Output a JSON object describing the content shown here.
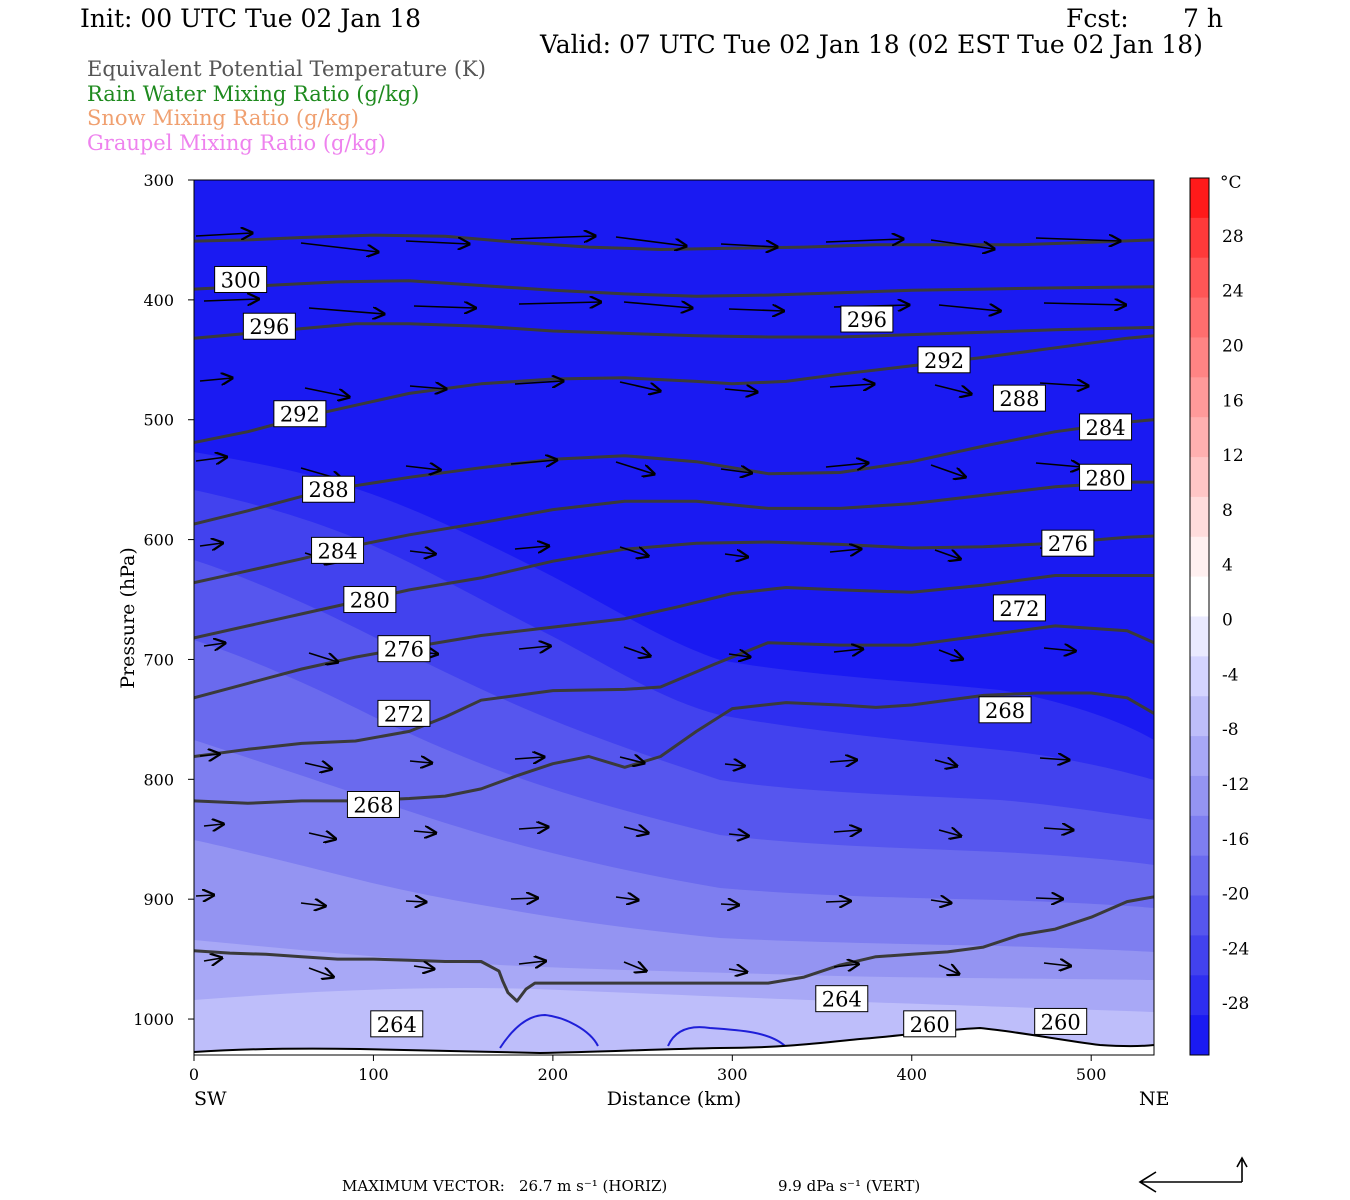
{
  "header": {
    "init": "Init: 00 UTC Tue 02 Jan 18",
    "fcst_label": "Fcst:",
    "fcst_value": "7 h",
    "valid": "Valid: 07 UTC Tue 02 Jan 18 (02 EST Tue 02 Jan 18)"
  },
  "legend": [
    {
      "text": "Equivalent Potential Temperature (K)",
      "color": "#555555"
    },
    {
      "text": "Rain Water Mixing Ratio (g/kg)",
      "color": "#1e8a1e"
    },
    {
      "text": "Snow Mixing Ratio (g/kg)",
      "color": "#f0a070"
    },
    {
      "text": "Graupel Mixing Ratio (g/kg)",
      "color": "#ee82ee"
    }
  ],
  "footer": {
    "max_vector_label": "MAXIMUM VECTOR:",
    "horiz": "26.7 m s⁻¹ (HORIZ)",
    "vert": "9.9 dPa s⁻¹ (VERT)"
  },
  "chart_data": {
    "type": "cross-section",
    "xlabel": "Distance (km)",
    "ylabel": "Pressure (hPa)",
    "x_ticks": [
      0,
      100,
      200,
      300,
      400,
      500
    ],
    "xlim": [
      0,
      535
    ],
    "x_end_labels": {
      "left": "SW",
      "right": "NE"
    },
    "y_ticks": [
      300,
      400,
      500,
      600,
      700,
      800,
      900,
      1000
    ],
    "ylim": [
      1030,
      300
    ],
    "colorbar": {
      "unit": "°C",
      "labels": [
        28,
        24,
        20,
        16,
        12,
        8,
        4,
        0,
        -4,
        -8,
        -12,
        -16,
        -20,
        -24,
        -28
      ],
      "colors": [
        "#ff1a1a",
        "#ff3a3a",
        "#ff5656",
        "#ff6e6e",
        "#ff8484",
        "#ff9a9a",
        "#ffb0b0",
        "#ffc6c6",
        "#ffdcdc",
        "#fff0f0",
        "#ffffff",
        "#eaeaff",
        "#d4d4ff",
        "#bebefa",
        "#a8a8f6",
        "#9494f2",
        "#7e7ef0",
        "#6a6aee",
        "#5656ee",
        "#4242ee",
        "#2e2ef0",
        "#1a1af2"
      ]
    },
    "theta_e_contours": [
      {
        "level": 300,
        "points": [
          [
            0,
            351
          ],
          [
            30,
            350
          ],
          [
            60,
            348
          ],
          [
            100,
            346
          ],
          [
            140,
            347
          ],
          [
            180,
            352
          ],
          [
            220,
            356
          ],
          [
            260,
            358
          ],
          [
            300,
            357
          ],
          [
            340,
            356
          ],
          [
            380,
            354
          ],
          [
            420,
            354
          ],
          [
            460,
            354
          ],
          [
            500,
            352
          ],
          [
            535,
            350
          ]
        ]
      },
      {
        "level": 296,
        "points": [
          [
            0,
            391
          ],
          [
            40,
            388
          ],
          [
            80,
            385
          ],
          [
            120,
            384
          ],
          [
            160,
            388
          ],
          [
            200,
            392
          ],
          [
            240,
            395
          ],
          [
            280,
            397
          ],
          [
            320,
            396
          ],
          [
            360,
            394
          ],
          [
            400,
            392
          ],
          [
            440,
            391
          ],
          [
            480,
            390
          ],
          [
            535,
            389
          ]
        ]
      },
      {
        "level": 292,
        "points": [
          [
            0,
            432
          ],
          [
            30,
            428
          ],
          [
            60,
            424
          ],
          [
            90,
            420
          ],
          [
            120,
            420
          ],
          [
            160,
            422
          ],
          [
            200,
            426
          ],
          [
            240,
            428
          ],
          [
            280,
            430
          ],
          [
            320,
            431
          ],
          [
            360,
            431
          ],
          [
            400,
            429
          ],
          [
            440,
            427
          ],
          [
            480,
            425
          ],
          [
            535,
            423
          ]
        ]
      },
      {
        "level": 288,
        "points": [
          [
            0,
            519
          ],
          [
            30,
            510
          ],
          [
            60,
            498
          ],
          [
            90,
            488
          ],
          [
            120,
            478
          ],
          [
            160,
            470
          ],
          [
            200,
            466
          ],
          [
            240,
            465
          ],
          [
            280,
            468
          ],
          [
            300,
            470
          ],
          [
            330,
            468
          ],
          [
            360,
            462
          ],
          [
            400,
            455
          ],
          [
            440,
            448
          ],
          [
            480,
            440
          ],
          [
            520,
            432
          ],
          [
            535,
            430
          ]
        ]
      },
      {
        "level": 284,
        "points": [
          [
            0,
            587
          ],
          [
            30,
            576
          ],
          [
            60,
            564
          ],
          [
            90,
            555
          ],
          [
            120,
            548
          ],
          [
            160,
            540
          ],
          [
            200,
            533
          ],
          [
            240,
            530
          ],
          [
            280,
            535
          ],
          [
            320,
            545
          ],
          [
            360,
            544
          ],
          [
            400,
            535
          ],
          [
            440,
            522
          ],
          [
            480,
            510
          ],
          [
            520,
            502
          ],
          [
            535,
            500
          ]
        ]
      },
      {
        "level": 280,
        "points": [
          [
            0,
            636
          ],
          [
            30,
            626
          ],
          [
            60,
            616
          ],
          [
            90,
            605
          ],
          [
            120,
            596
          ],
          [
            160,
            586
          ],
          [
            200,
            575
          ],
          [
            240,
            568
          ],
          [
            280,
            568
          ],
          [
            320,
            574
          ],
          [
            360,
            574
          ],
          [
            400,
            570
          ],
          [
            440,
            563
          ],
          [
            480,
            556
          ],
          [
            520,
            552
          ],
          [
            535,
            552
          ]
        ]
      },
      {
        "level": 276,
        "points": [
          [
            0,
            682
          ],
          [
            30,
            672
          ],
          [
            60,
            662
          ],
          [
            90,
            652
          ],
          [
            120,
            642
          ],
          [
            160,
            632
          ],
          [
            200,
            618
          ],
          [
            240,
            608
          ],
          [
            280,
            603
          ],
          [
            320,
            602
          ],
          [
            360,
            604
          ],
          [
            400,
            607
          ],
          [
            440,
            606
          ],
          [
            480,
            603
          ],
          [
            520,
            598
          ],
          [
            535,
            597
          ]
        ]
      },
      {
        "level": 272,
        "points": [
          [
            0,
            732
          ],
          [
            30,
            720
          ],
          [
            60,
            708
          ],
          [
            90,
            698
          ],
          [
            120,
            690
          ],
          [
            160,
            680
          ],
          [
            200,
            673
          ],
          [
            240,
            666
          ],
          [
            270,
            656
          ],
          [
            300,
            645
          ],
          [
            330,
            640
          ],
          [
            360,
            642
          ],
          [
            400,
            644
          ],
          [
            440,
            638
          ],
          [
            480,
            630
          ],
          [
            510,
            630
          ],
          [
            535,
            630
          ]
        ]
      },
      {
        "level": 268,
        "points": [
          [
            0,
            781
          ],
          [
            30,
            775
          ],
          [
            60,
            770
          ],
          [
            90,
            768
          ],
          [
            120,
            760
          ],
          [
            140,
            748
          ],
          [
            160,
            734
          ],
          [
            200,
            726
          ],
          [
            240,
            725
          ],
          [
            260,
            723
          ],
          [
            290,
            704
          ],
          [
            320,
            686
          ],
          [
            360,
            688
          ],
          [
            400,
            688
          ],
          [
            440,
            680
          ],
          [
            480,
            672
          ],
          [
            520,
            676
          ],
          [
            535,
            686
          ]
        ]
      },
      {
        "level": 264,
        "points": [
          [
            0,
            818
          ],
          [
            30,
            820
          ],
          [
            60,
            818
          ],
          [
            90,
            818
          ],
          [
            120,
            816
          ],
          [
            140,
            814
          ],
          [
            160,
            808
          ],
          [
            180,
            797
          ],
          [
            200,
            787
          ],
          [
            220,
            781
          ],
          [
            240,
            790
          ],
          [
            260,
            781
          ],
          [
            280,
            760
          ],
          [
            300,
            741
          ],
          [
            330,
            736
          ],
          [
            360,
            738
          ],
          [
            380,
            740
          ],
          [
            400,
            738
          ],
          [
            440,
            730
          ],
          [
            470,
            728
          ],
          [
            500,
            728
          ],
          [
            520,
            732
          ],
          [
            535,
            745
          ]
        ]
      },
      {
        "level": 260,
        "points": [
          [
            0,
            943
          ],
          [
            20,
            945
          ],
          [
            40,
            946
          ],
          [
            60,
            948
          ],
          [
            80,
            950
          ],
          [
            100,
            950
          ],
          [
            120,
            951
          ],
          [
            140,
            952
          ],
          [
            160,
            952
          ],
          [
            170,
            960
          ],
          [
            172,
            968
          ],
          [
            175,
            978
          ],
          [
            180,
            985
          ],
          [
            185,
            975
          ],
          [
            190,
            970
          ],
          [
            260,
            970
          ],
          [
            280,
            970
          ],
          [
            300,
            970
          ],
          [
            320,
            970
          ],
          [
            340,
            965
          ],
          [
            360,
            955
          ],
          [
            380,
            948
          ],
          [
            400,
            946
          ],
          [
            420,
            944
          ],
          [
            440,
            940
          ],
          [
            460,
            930
          ],
          [
            480,
            925
          ],
          [
            500,
            915
          ],
          [
            520,
            902
          ],
          [
            535,
            898
          ]
        ]
      }
    ],
    "theta_e_labels": [
      {
        "level": 300,
        "x": 26,
        "p": 383
      },
      {
        "level": 296,
        "x": 42,
        "p": 422
      },
      {
        "level": 292,
        "x": 59,
        "p": 495
      },
      {
        "level": 288,
        "x": 75,
        "p": 558
      },
      {
        "level": 284,
        "x": 80,
        "p": 609
      },
      {
        "level": 280,
        "x": 98,
        "p": 650
      },
      {
        "level": 276,
        "x": 117,
        "p": 691
      },
      {
        "level": 272,
        "x": 117,
        "p": 745
      },
      {
        "level": 268,
        "x": 100,
        "p": 821
      },
      {
        "level": 264,
        "x": 113,
        "p": 1004
      },
      {
        "level": 296,
        "x": 375,
        "p": 416
      },
      {
        "level": 292,
        "x": 418,
        "p": 450
      },
      {
        "level": 288,
        "x": 460,
        "p": 482
      },
      {
        "level": 284,
        "x": 508,
        "p": 506
      },
      {
        "level": 280,
        "x": 508,
        "p": 548
      },
      {
        "level": 276,
        "x": 487,
        "p": 603
      },
      {
        "level": 272,
        "x": 460,
        "p": 657
      },
      {
        "level": 268,
        "x": 452,
        "p": 742
      },
      {
        "level": 264,
        "x": 361,
        "p": 983
      },
      {
        "level": 260,
        "x": 410,
        "p": 1004
      },
      {
        "level": 260,
        "x": 483,
        "p": 1002
      }
    ]
  }
}
